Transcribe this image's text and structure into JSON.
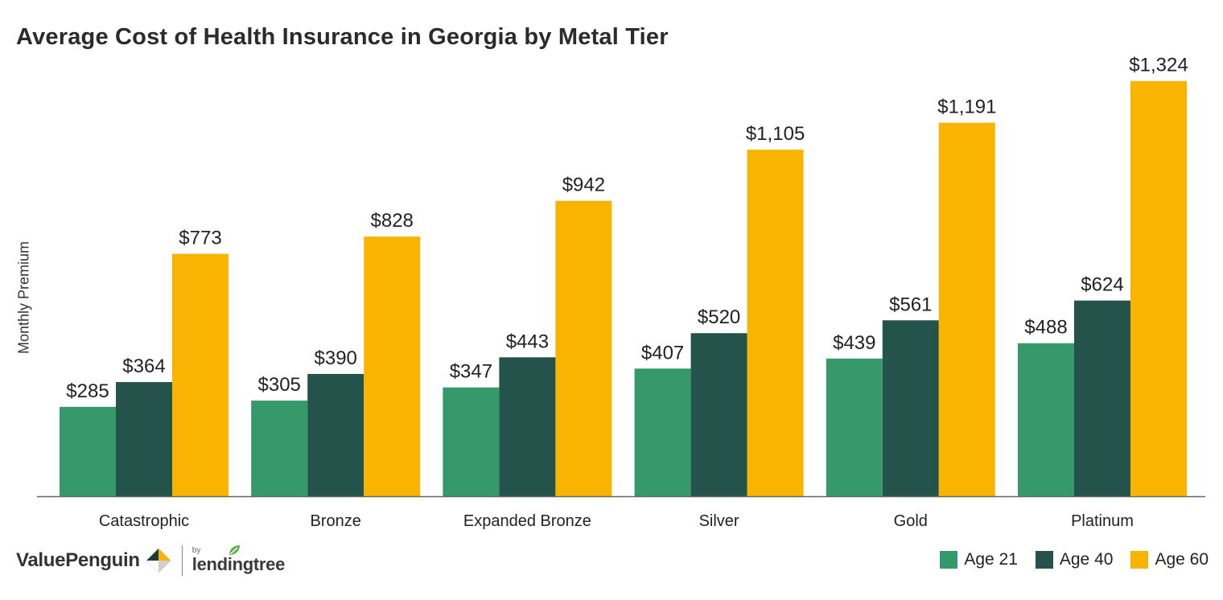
{
  "header": {
    "title": "Average Cost of Health Insurance in Georgia by Metal Tier"
  },
  "chart_data": {
    "type": "bar",
    "title": "Average Cost of Health Insurance in Georgia by Metal Tier",
    "xlabel": "",
    "ylabel": "Monthly Premium",
    "ylim": [
      0,
      1390
    ],
    "grid": false,
    "legend_position": "bottom-right",
    "categories": [
      "Catastrophic",
      "Bronze",
      "Expanded Bronze",
      "Silver",
      "Gold",
      "Platinum"
    ],
    "series": [
      {
        "name": "Age 21",
        "color": "#35996a",
        "values": [
          285,
          305,
          347,
          407,
          439,
          488
        ],
        "labels": [
          "$285",
          "$305",
          "$347",
          "$407",
          "$439",
          "$488"
        ]
      },
      {
        "name": "Age 40",
        "color": "#23534a",
        "values": [
          364,
          390,
          443,
          520,
          561,
          624
        ],
        "labels": [
          "$364",
          "$390",
          "$443",
          "$520",
          "$561",
          "$624"
        ]
      },
      {
        "name": "Age 60",
        "color": "#f8b400",
        "values": [
          773,
          828,
          942,
          1105,
          1191,
          1324
        ],
        "labels": [
          "$773",
          "$828",
          "$942",
          "$1,105",
          "$1,191",
          "$1,324"
        ]
      }
    ]
  },
  "footer": {
    "brand": "ValuePenguin",
    "by": "by",
    "partner": "lendingtree",
    "icons": [
      "valuepenguin-logo-icon",
      "lendingtree-leaf-icon"
    ]
  }
}
